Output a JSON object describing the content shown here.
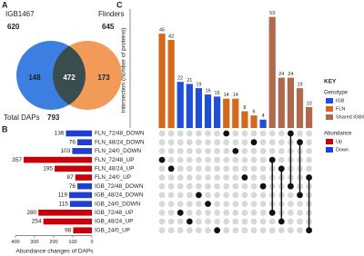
{
  "panels": [
    "A",
    "B",
    "C"
  ],
  "venn": {
    "left_name": "IGB1467",
    "left_total": 620,
    "right_name": "Flinders",
    "right_total": 645,
    "left_only": 148,
    "both": 472,
    "right_only": 173,
    "total_label": "Total DAPs",
    "total": 793,
    "left_color": "#3d7fe0",
    "right_color": "#f08a3c"
  },
  "chart_data": [
    {
      "type": "hbar",
      "xlabel": "Abundance changes of DAPs",
      "categories": [
        "FLN_72/48_DOWN",
        "FLN_48/24_DOWN",
        "FLN_24/0_DOWN",
        "FLN_72/48_UP",
        "FLN_48/24_UP",
        "FLN_24/0_UP",
        "IGB_72/48_DOWN",
        "IGB_48/24_DOWN",
        "IGB_24/0_DOWN",
        "IGB_72/48_UP",
        "IGB_48/24_UP",
        "IGB_24/0_UP"
      ],
      "values": [
        136,
        76,
        103,
        357,
        195,
        87,
        76,
        119,
        115,
        280,
        254,
        98
      ],
      "colors": [
        "#1f3fd0",
        "#1f3fd0",
        "#1f3fd0",
        "#c8000a",
        "#c8000a",
        "#c8000a",
        "#1f3fd0",
        "#1f3fd0",
        "#1f3fd0",
        "#c8000a",
        "#c8000a",
        "#c8000a"
      ],
      "xlim": [
        400,
        0
      ],
      "xticks": [
        400,
        300,
        200,
        100,
        0
      ]
    },
    {
      "type": "upset",
      "ylabel": "Intersection (number of proteins)",
      "values": [
        45,
        42,
        22,
        21,
        19,
        16,
        15,
        14,
        14,
        8,
        6,
        4,
        53,
        24,
        24,
        19,
        10
      ],
      "colors": [
        "#d4691e",
        "#d4691e",
        "#1f4fd6",
        "#1f4fd6",
        "#1f4fd6",
        "#1f4fd6",
        "#1f4fd6",
        "#d4691e",
        "#d4691e",
        "#d4691e",
        "#d4691e",
        "#1f4fd6",
        "#b0694c",
        "#b0694c",
        "#b0694c",
        "#b0694c",
        "#b0694c"
      ],
      "sets": [
        [
          3
        ],
        [
          4
        ],
        [
          9
        ],
        [
          10
        ],
        [
          7
        ],
        [
          8
        ],
        [
          11
        ],
        [
          0
        ],
        [
          2
        ],
        [
          5
        ],
        [
          1
        ],
        [
          6
        ],
        [
          3,
          9
        ],
        [
          4,
          10
        ],
        [
          0,
          6
        ],
        [
          1,
          7
        ],
        [
          5,
          11
        ]
      ],
      "ylim": [
        0,
        55
      ],
      "legend": {
        "title": "KEY",
        "groups": [
          {
            "title": "Genotype",
            "items": [
              {
                "name": "IGB",
                "color": "#1f4fd6"
              },
              {
                "name": "FLN",
                "color": "#d4691e"
              },
              {
                "name": "Shared IGB/FLN",
                "color": "#b0694c"
              }
            ]
          },
          {
            "title": "Abundance",
            "items": [
              {
                "name": "Up",
                "color": "#c8000a"
              },
              {
                "name": "Down",
                "color": "#1f3fd0"
              }
            ]
          }
        ]
      }
    }
  ]
}
